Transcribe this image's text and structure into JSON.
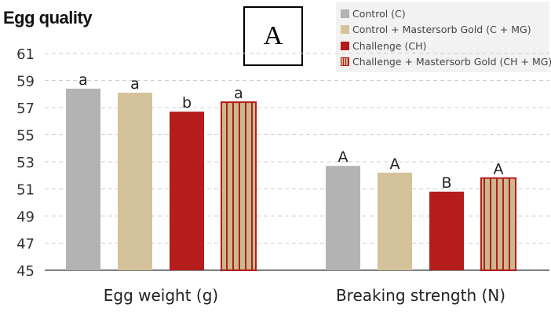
{
  "chart_data": {
    "type": "bar",
    "title": "Egg quality",
    "panel_label": "A",
    "categories": [
      "Egg weight (g)",
      "Breaking strength (N)"
    ],
    "ylim": [
      45,
      61
    ],
    "yticks": [
      45,
      47,
      49,
      51,
      53,
      55,
      57,
      59,
      61
    ],
    "grid": true,
    "legend_position": "top-right",
    "series": [
      {
        "name": "Control (C)",
        "values": [
          58.4,
          52.7
        ],
        "letters": [
          "a",
          "A"
        ],
        "color": "#b3b3b3",
        "pattern": "solid"
      },
      {
        "name": "Control + Mastersorb Gold (C + MG)",
        "values": [
          58.1,
          52.2
        ],
        "letters": [
          "a",
          "A"
        ],
        "color": "#d4c29a",
        "pattern": "solid"
      },
      {
        "name": "Challenge (CH)",
        "values": [
          56.7,
          50.8
        ],
        "letters": [
          "b",
          "B"
        ],
        "color": "#b51c1c",
        "pattern": "solid"
      },
      {
        "name": "Challenge + Mastersorb Gold (CH + MG)",
        "values": [
          57.4,
          51.8
        ],
        "letters": [
          "a",
          "A"
        ],
        "color": "#c9b98c",
        "pattern": "stripes",
        "stripe_color": "#b51c1c"
      }
    ]
  }
}
